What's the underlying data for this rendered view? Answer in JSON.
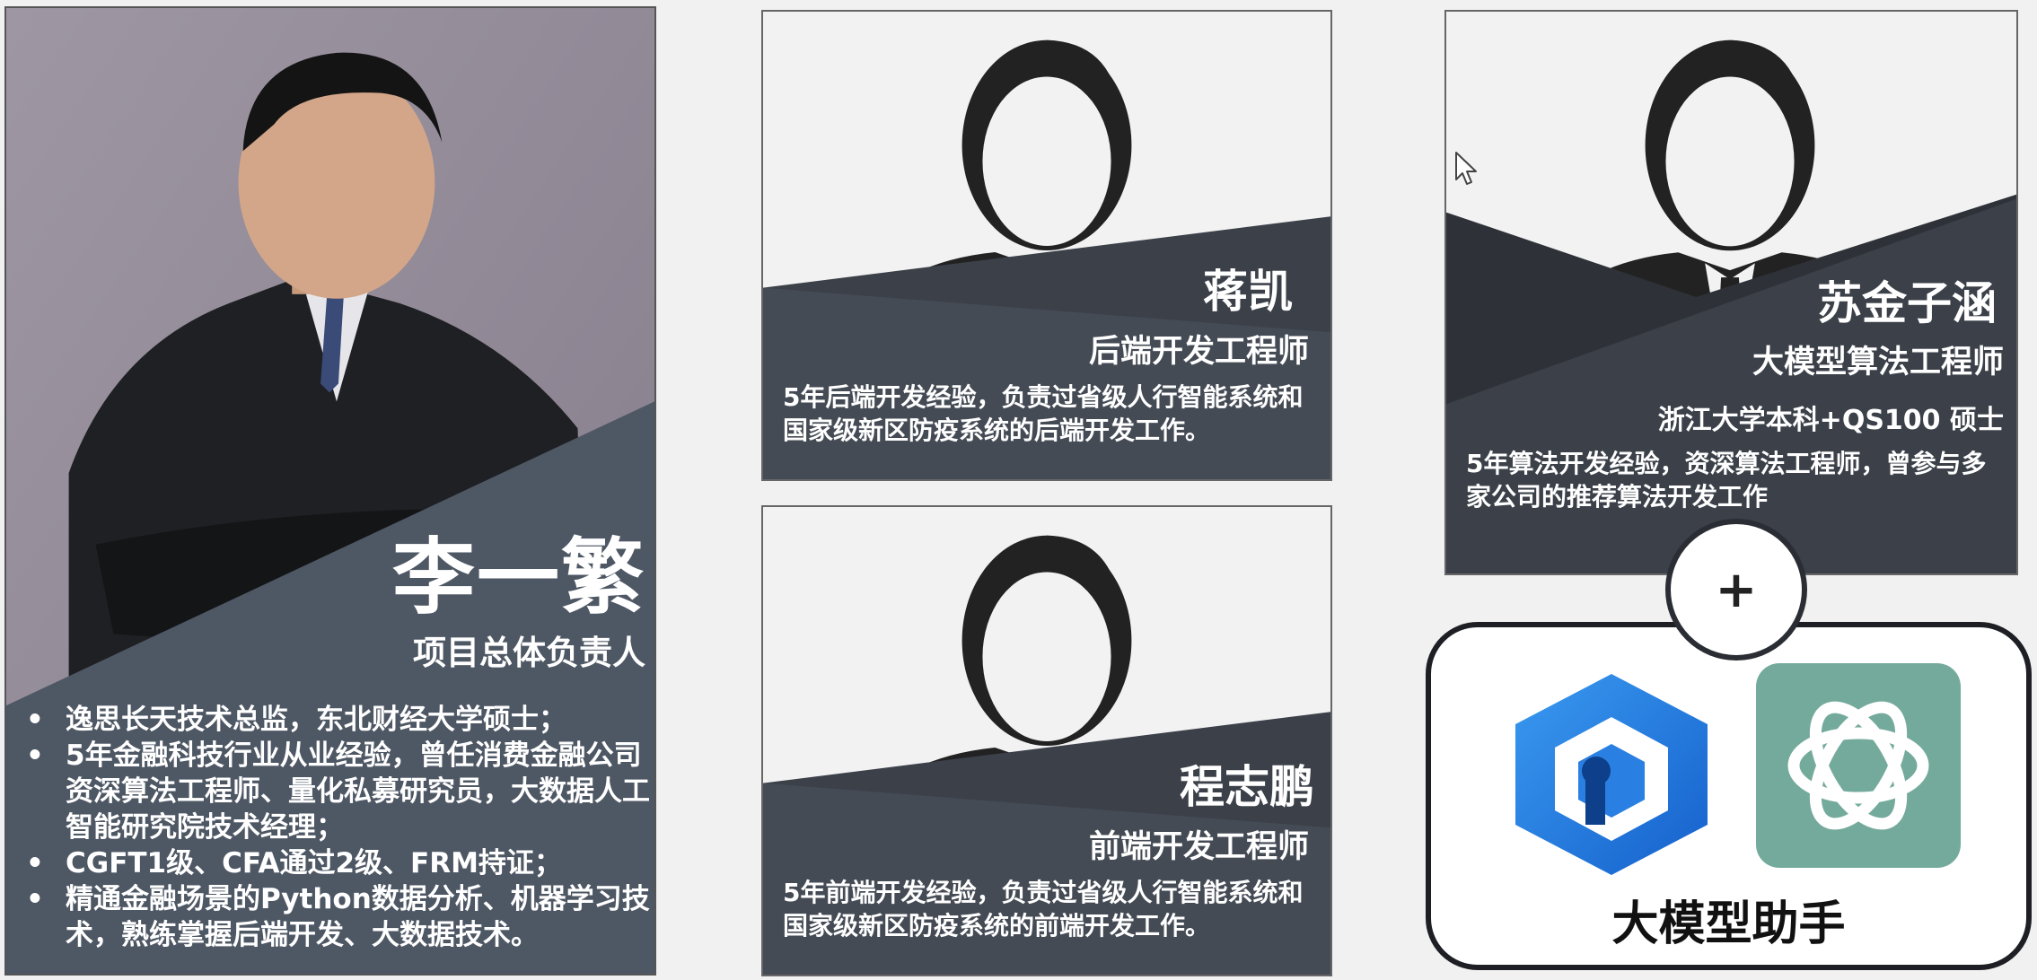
{
  "lead": {
    "name": "李一繁",
    "role": "项目总体负责人",
    "bullets": [
      "逸思长天技术总监，东北财经大学硕士；",
      "5年金融科技行业从业经验，曾任消费金融公司资深算法工程师、量化私募研究员，大数据人工智能研究院技术经理；",
      "CGFT1级、CFA通过2级、FRM持证；",
      "精通金融场景的Python数据分析、机器学习技术，熟练掌握后端开发、大数据技术。"
    ],
    "bullet_symbol": "•"
  },
  "members": [
    {
      "name": "蒋凯",
      "role": "后端开发工程师",
      "description": "5年后端开发经验，负责过省级人行智能系统和国家级新区防疫系统的后端开发工作。"
    },
    {
      "name": "程志鹏",
      "role": "前端开发工程师",
      "description": "5年前端开发经验，负责过省级人行智能系统和国家级新区防疫系统的前端开发工作。"
    },
    {
      "name": "苏金子涵",
      "role": "大模型算法工程师",
      "education": "浙江大学本科+QS100 硕士",
      "description": "5年算法开发经验，资深算法工程师，曾参与多家公司的推荐算法开发工作"
    }
  ],
  "connector": {
    "symbol": "+"
  },
  "assistant": {
    "label": "大模型助手",
    "logos": [
      "hexagon-cube-logo",
      "openai-logo"
    ]
  },
  "colors": {
    "panel_dark": "#3b4049",
    "panel_light": "#4f5865",
    "silhouette": "#222222",
    "photo_bg": "#948c98",
    "openai_green": "#74aa9c",
    "logo_blue": "#1f7fe0"
  }
}
